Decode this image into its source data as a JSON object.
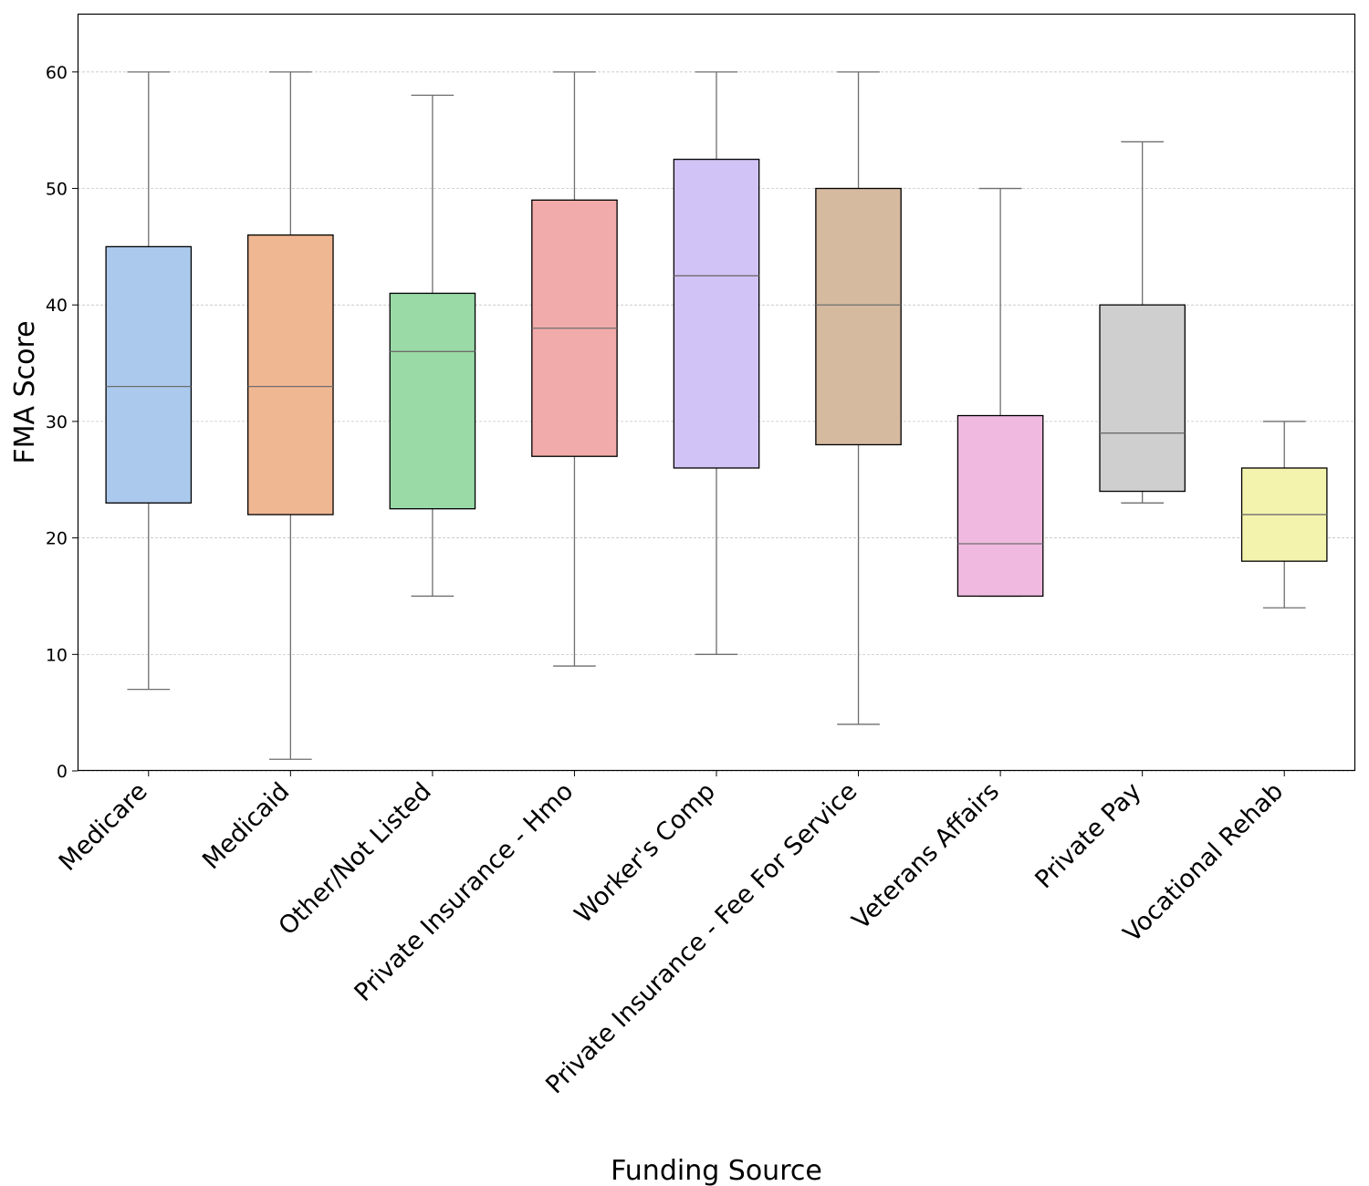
{
  "chart_data": {
    "type": "boxplot",
    "xlabel": "Funding Source",
    "ylabel": "FMA Score",
    "ylim": [
      0,
      65
    ],
    "yticks": [
      0,
      10,
      20,
      30,
      40,
      50,
      60
    ],
    "grid": "horizontal dashed",
    "categories": [
      "Medicare",
      "Medicaid",
      "Other/Not Listed",
      "Private Insurance - Hmo",
      "Worker's Comp",
      "Private Insurance - Fee For Service",
      "Veterans Affairs",
      "Private Pay",
      "Vocational Rehab"
    ],
    "boxes": [
      {
        "category": "Medicare",
        "whisker_low": 7,
        "q1": 23,
        "median": 33,
        "q3": 45,
        "whisker_high": 60,
        "color": "#abc9ed"
      },
      {
        "category": "Medicaid",
        "whisker_low": 1,
        "q1": 22,
        "median": 33,
        "q3": 46,
        "whisker_high": 60,
        "color": "#f0b793"
      },
      {
        "category": "Other/Not Listed",
        "whisker_low": 15,
        "q1": 22.5,
        "median": 36,
        "q3": 41,
        "whisker_high": 58,
        "color": "#99daa7"
      },
      {
        "category": "Private Insurance - Hmo",
        "whisker_low": 9,
        "q1": 27,
        "median": 38,
        "q3": 49,
        "whisker_high": 60,
        "color": "#f1abaa"
      },
      {
        "category": "Worker's Comp",
        "whisker_low": 10,
        "q1": 26,
        "median": 42.5,
        "q3": 52.5,
        "whisker_high": 60,
        "color": "#d1c3f5"
      },
      {
        "category": "Private Insurance - Fee For Service",
        "whisker_low": 4,
        "q1": 28,
        "median": 40,
        "q3": 50,
        "whisker_high": 60,
        "color": "#d5baa0"
      },
      {
        "category": "Veterans Affairs",
        "whisker_low": 15,
        "q1": 15,
        "median": 19.5,
        "q3": 30.5,
        "whisker_high": 50,
        "color": "#f0bae0"
      },
      {
        "category": "Private Pay",
        "whisker_low": 23,
        "q1": 24,
        "median": 29,
        "q3": 40,
        "whisker_high": 54,
        "color": "#cfcfcf"
      },
      {
        "category": "Vocational Rehab",
        "whisker_low": 14,
        "q1": 18,
        "median": 22,
        "q3": 26,
        "whisker_high": 30,
        "color": "#f4f3ad"
      }
    ]
  }
}
